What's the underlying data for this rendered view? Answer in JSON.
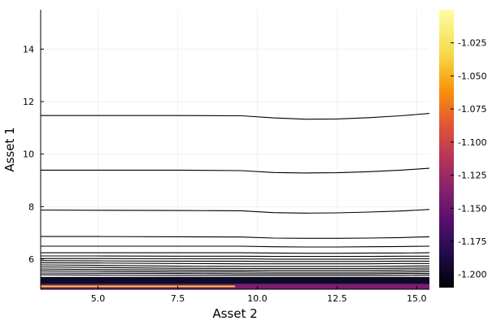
{
  "chart_data": {
    "type": "contour",
    "title": "",
    "xlabel": "Asset 2",
    "ylabel": "Asset 1",
    "xlim": [
      3.2,
      15.4
    ],
    "ylim": [
      4.85,
      15.5
    ],
    "xticks": [
      5.0,
      7.5,
      10.0,
      12.5,
      15.0
    ],
    "xtick_labels": [
      "5.0",
      "7.5",
      "10.0",
      "12.5",
      "15.0"
    ],
    "yticks": [
      6,
      8,
      10,
      12,
      14
    ],
    "ytick_labels": [
      "6",
      "8",
      "10",
      "12",
      "14"
    ],
    "grid": true,
    "contour_color": "#000000",
    "contours": [
      {
        "x": [
          3.2,
          5.0,
          7.5,
          9.5,
          10.5,
          11.5,
          12.5,
          13.5,
          14.5,
          15.4
        ],
        "y": [
          11.47,
          11.47,
          11.47,
          11.46,
          11.38,
          11.33,
          11.34,
          11.39,
          11.46,
          11.55
        ]
      },
      {
        "x": [
          3.2,
          5.0,
          7.5,
          9.5,
          10.5,
          11.5,
          12.5,
          13.5,
          14.5,
          15.4
        ],
        "y": [
          9.39,
          9.39,
          9.39,
          9.37,
          9.3,
          9.28,
          9.29,
          9.33,
          9.39,
          9.46
        ]
      },
      {
        "x": [
          3.2,
          5.0,
          7.5,
          9.5,
          10.5,
          11.5,
          12.5,
          13.5,
          14.5,
          15.4
        ],
        "y": [
          7.87,
          7.86,
          7.85,
          7.84,
          7.77,
          7.75,
          7.76,
          7.79,
          7.83,
          7.89
        ]
      },
      {
        "x": [
          3.2,
          5.0,
          7.5,
          9.5,
          10.5,
          11.5,
          12.5,
          13.5,
          14.5,
          15.4
        ],
        "y": [
          6.86,
          6.86,
          6.85,
          6.84,
          6.8,
          6.79,
          6.79,
          6.8,
          6.82,
          6.85
        ]
      },
      {
        "x": [
          3.2,
          5.0,
          7.5,
          9.5,
          10.5,
          11.5,
          12.5,
          13.5,
          14.5,
          15.4
        ],
        "y": [
          6.49,
          6.49,
          6.49,
          6.49,
          6.47,
          6.46,
          6.46,
          6.47,
          6.48,
          6.49
        ]
      },
      {
        "x": [
          3.2,
          5.0,
          7.5,
          9.5,
          10.5,
          11.5,
          12.5,
          13.5,
          14.5,
          15.4
        ],
        "y": [
          6.24,
          6.24,
          6.24,
          6.24,
          6.23,
          6.22,
          6.22,
          6.23,
          6.23,
          6.24
        ]
      },
      {
        "x": [
          3.2,
          5.0,
          7.5,
          9.5,
          10.5,
          11.5,
          12.5,
          13.5,
          14.5,
          15.4
        ],
        "y": [
          6.12,
          6.12,
          6.11,
          6.11,
          6.1,
          6.1,
          6.1,
          6.1,
          6.11,
          6.11
        ]
      },
      {
        "x": [
          3.2,
          5.0,
          7.5,
          9.5,
          10.5,
          11.5,
          12.5,
          13.5,
          14.5,
          15.4
        ],
        "y": [
          6.02,
          6.02,
          6.01,
          6.01,
          6.0,
          6.0,
          6.0,
          6.0,
          6.01,
          6.01
        ]
      },
      {
        "x": [
          3.2,
          5.0,
          7.5,
          9.5,
          10.5,
          11.5,
          12.5,
          13.5,
          14.5,
          15.4
        ],
        "y": [
          5.94,
          5.93,
          5.92,
          5.92,
          5.91,
          5.91,
          5.91,
          5.91,
          5.92,
          5.92
        ]
      },
      {
        "x": [
          3.2,
          5.0,
          7.5,
          9.5,
          10.5,
          11.5,
          12.5,
          13.5,
          14.5,
          15.4
        ],
        "y": [
          5.86,
          5.85,
          5.83,
          5.82,
          5.82,
          5.82,
          5.82,
          5.82,
          5.83,
          5.83
        ]
      },
      {
        "x": [
          3.2,
          5.0,
          7.5,
          9.5,
          10.5,
          11.5,
          12.5,
          13.5,
          14.5,
          15.4
        ],
        "y": [
          5.78,
          5.76,
          5.73,
          5.72,
          5.72,
          5.72,
          5.72,
          5.72,
          5.73,
          5.74
        ]
      },
      {
        "x": [
          3.2,
          5.0,
          7.5,
          9.5,
          10.5,
          11.5,
          12.5,
          13.5,
          14.5,
          15.4
        ],
        "y": [
          5.7,
          5.68,
          5.65,
          5.64,
          5.64,
          5.64,
          5.64,
          5.64,
          5.65,
          5.66
        ]
      },
      {
        "x": [
          3.2,
          5.0,
          7.5,
          9.5,
          10.5,
          11.5,
          12.5,
          13.5,
          14.5,
          15.4
        ],
        "y": [
          5.62,
          5.6,
          5.58,
          5.57,
          5.57,
          5.57,
          5.57,
          5.57,
          5.58,
          5.59
        ]
      },
      {
        "x": [
          3.2,
          5.0,
          7.5,
          9.5,
          10.5,
          11.5,
          12.5,
          13.5,
          14.5,
          15.4
        ],
        "y": [
          5.55,
          5.53,
          5.51,
          5.51,
          5.5,
          5.5,
          5.5,
          5.5,
          5.51,
          5.52
        ]
      },
      {
        "x": [
          3.2,
          5.0,
          7.5,
          9.5,
          10.5,
          11.5,
          12.5,
          13.5,
          14.5,
          15.4
        ],
        "y": [
          5.47,
          5.46,
          5.45,
          5.44,
          5.44,
          5.44,
          5.44,
          5.44,
          5.45,
          5.45
        ]
      },
      {
        "x": [
          3.2,
          5.0,
          7.5,
          9.5,
          10.5,
          11.5,
          12.5,
          13.5,
          14.5,
          15.4
        ],
        "y": [
          5.4,
          5.39,
          5.38,
          5.38,
          5.38,
          5.38,
          5.38,
          5.38,
          5.38,
          5.39
        ]
      }
    ],
    "filled_bands": [
      {
        "x": [
          3.2,
          15.4
        ],
        "y": [
          5.05,
          5.32
        ],
        "color": "#0d0a29"
      },
      {
        "x": [
          3.2,
          15.4
        ],
        "y": [
          4.85,
          5.05
        ],
        "color": "#7a1d6d"
      },
      {
        "x": [
          3.2,
          9.3
        ],
        "y": [
          4.93,
          4.99
        ],
        "color": "#fcd22a"
      }
    ],
    "colorbar": {
      "min": -1.21,
      "max": -1.0,
      "tick_values": [
        -1.2,
        -1.175,
        -1.15,
        -1.125,
        -1.1,
        -1.075,
        -1.05,
        -1.025
      ],
      "tick_labels": [
        "-1.200",
        "-1.175",
        "-1.150",
        "-1.125",
        "-1.100",
        "-1.075",
        "-1.050",
        "-1.025"
      ],
      "colormap": "inferno",
      "gradient_stops": [
        {
          "value": -1.21,
          "color": "#000004"
        },
        {
          "value": -1.185,
          "color": "#1f0c48"
        },
        {
          "value": -1.16,
          "color": "#550f6d"
        },
        {
          "value": -1.135,
          "color": "#88226a"
        },
        {
          "value": -1.11,
          "color": "#ba3655"
        },
        {
          "value": -1.085,
          "color": "#e35933"
        },
        {
          "value": -1.06,
          "color": "#f9950a"
        },
        {
          "value": -1.035,
          "color": "#f6d746"
        },
        {
          "value": -1.0,
          "color": "#fcffa4"
        }
      ]
    }
  }
}
